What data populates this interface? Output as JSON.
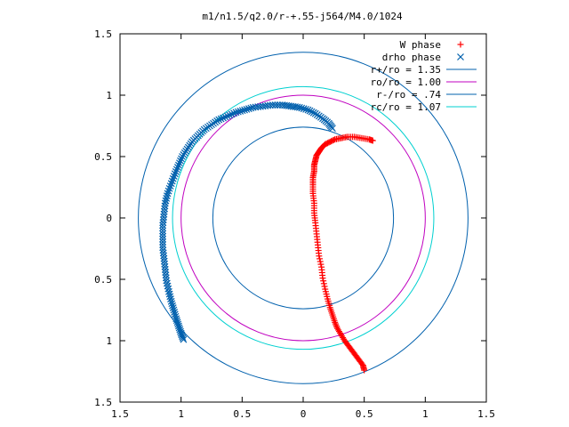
{
  "chart_data": {
    "type": "scatter",
    "title": "m1/n1.5/q2.0/r-+.55-j564/M4.0/1024",
    "xlim": [
      -1.5,
      1.5
    ],
    "ylim": [
      -1.5,
      1.5
    ],
    "xticks": [
      -1.5,
      -1,
      -0.5,
      0,
      0.5,
      1,
      1.5
    ],
    "yticks": [
      -1.5,
      -1,
      -0.5,
      0,
      0.5,
      1,
      1.5
    ],
    "xtick_labels": [
      "1.5",
      "1",
      "0.5",
      "0",
      "0.5",
      "1",
      "1.5"
    ],
    "ytick_labels": [
      "1.5",
      "1",
      "0.5",
      "0",
      "0.5",
      "1",
      "1.5"
    ],
    "grid": false,
    "legend_position": "top-right",
    "series": [
      {
        "name": "W phase",
        "kind": "points",
        "marker": "plus",
        "color": "#ff0000",
        "x": [
          0.5,
          0.49,
          0.46,
          0.43,
          0.4,
          0.37,
          0.34,
          0.31,
          0.28,
          0.26,
          0.24,
          0.22,
          0.2,
          0.18,
          0.16,
          0.15,
          0.13,
          0.12,
          0.11,
          0.1,
          0.09,
          0.09,
          0.08,
          0.08,
          0.08,
          0.09,
          0.09,
          0.1,
          0.11,
          0.13,
          0.15,
          0.18,
          0.22,
          0.26,
          0.31,
          0.36,
          0.42,
          0.48,
          0.54,
          0.57
        ],
        "y": [
          -1.24,
          -1.2,
          -1.16,
          -1.12,
          -1.08,
          -1.04,
          -1.0,
          -0.95,
          -0.9,
          -0.85,
          -0.79,
          -0.73,
          -0.66,
          -0.58,
          -0.49,
          -0.4,
          -0.31,
          -0.22,
          -0.13,
          -0.04,
          0.04,
          0.12,
          0.2,
          0.27,
          0.33,
          0.38,
          0.43,
          0.47,
          0.51,
          0.54,
          0.57,
          0.6,
          0.62,
          0.64,
          0.65,
          0.66,
          0.66,
          0.65,
          0.64,
          0.63
        ]
      },
      {
        "name": "drho phase",
        "kind": "points",
        "marker": "cross",
        "color": "#0060ad",
        "x": [
          -0.98,
          -1.0,
          -1.02,
          -1.04,
          -1.06,
          -1.08,
          -1.1,
          -1.12,
          -1.13,
          -1.14,
          -1.15,
          -1.15,
          -1.15,
          -1.14,
          -1.13,
          -1.11,
          -1.08,
          -1.05,
          -1.02,
          -0.99,
          -0.95,
          -0.91,
          -0.86,
          -0.81,
          -0.75,
          -0.69,
          -0.62,
          -0.55,
          -0.48,
          -0.41,
          -0.33,
          -0.25,
          -0.17,
          -0.1,
          -0.03,
          0.04,
          0.1,
          0.16,
          0.21,
          0.24
        ],
        "y": [
          -0.99,
          -0.94,
          -0.88,
          -0.82,
          -0.75,
          -0.68,
          -0.6,
          -0.51,
          -0.42,
          -0.33,
          -0.24,
          -0.15,
          -0.06,
          0.03,
          0.12,
          0.2,
          0.28,
          0.36,
          0.43,
          0.5,
          0.56,
          0.62,
          0.67,
          0.72,
          0.76,
          0.8,
          0.83,
          0.86,
          0.88,
          0.9,
          0.91,
          0.92,
          0.92,
          0.91,
          0.9,
          0.88,
          0.85,
          0.81,
          0.77,
          0.73
        ]
      },
      {
        "name": "r+/ro = 1.35",
        "kind": "circle",
        "radius": 1.35,
        "color": "#0060ad"
      },
      {
        "name": "ro/ro = 1.00",
        "kind": "circle",
        "radius": 1.0,
        "color": "#c000c0"
      },
      {
        "name": "r-/ro = .74",
        "kind": "circle",
        "radius": 0.74,
        "color": "#0060ad"
      },
      {
        "name": "rc/ro = 1.07",
        "kind": "circle",
        "radius": 1.07,
        "color": "#00d0d0"
      }
    ]
  }
}
